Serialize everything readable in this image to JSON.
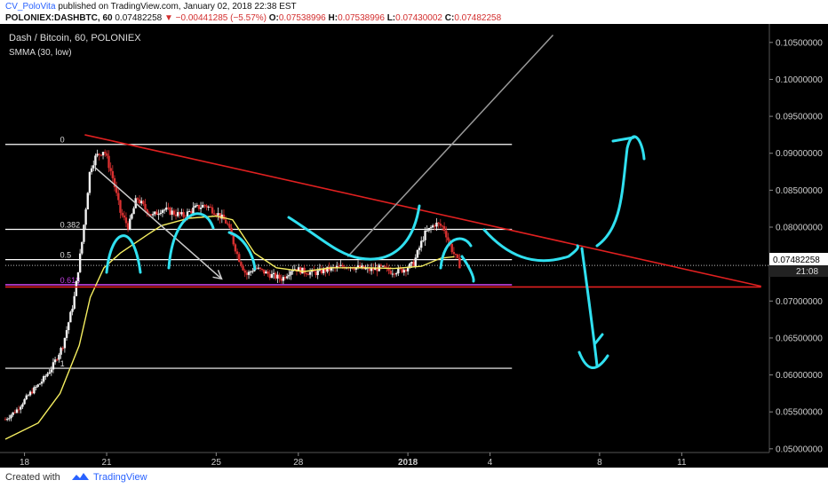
{
  "header": {
    "author": "CV_PoloVita",
    "published_text": "published on TradingView.com, January 02, 2018 22:38 EST",
    "symbol_line": "POLONIEX:DASHBTC, 60",
    "price": "0.07482258",
    "change": "−0.00441285 (−5.57%)",
    "ohlc": {
      "o_label": "O:",
      "o": "0.07538996",
      "h_label": "H:",
      "h": "0.07538996",
      "l_label": "L:",
      "l": "0.07430002",
      "c_label": "C:",
      "c": "0.07482258"
    }
  },
  "chart_title": "Dash / Bitcoin, 60, POLONIEX",
  "indicator_label": "SMMA (30, low)",
  "price_badge": "0.07482258",
  "time_badge": "21:08",
  "footer": {
    "created_with": "Created with",
    "brand": "TradingView"
  },
  "colors": {
    "trendline": "#e02020",
    "drawing": "#30e0f0",
    "smma": "#f5ee60",
    "fib": "#ffffff",
    "fib_base": "#c040e0"
  },
  "chart_data": {
    "type": "candlestick",
    "title": "Dash / Bitcoin, 60, POLONIEX",
    "ylim": [
      0.0495,
      0.1075
    ],
    "y_ticks": [
      "0.10500000",
      "0.10000000",
      "0.09500000",
      "0.09000000",
      "0.08500000",
      "0.08000000",
      "0.07500000",
      "0.07000000",
      "0.06500000",
      "0.06000000",
      "0.05500000",
      "0.05000000"
    ],
    "y_tick_values": [
      0.105,
      0.1,
      0.095,
      0.09,
      0.085,
      0.08,
      0.075,
      0.07,
      0.065,
      0.06,
      0.055,
      0.05
    ],
    "x_ticks": [
      {
        "label": "18",
        "day": 0
      },
      {
        "label": "21",
        "day": 3
      },
      {
        "label": "25",
        "day": 7
      },
      {
        "label": "28",
        "day": 10
      },
      {
        "label": "2018",
        "day": 14
      },
      {
        "label": "4",
        "day": 17
      },
      {
        "label": "8",
        "day": 21
      },
      {
        "label": "11",
        "day": 24
      }
    ],
    "xlim_days": [
      -0.7,
      27.2
    ],
    "fib_levels": [
      {
        "label": "0",
        "value": 0.0912
      },
      {
        "label": "0.382",
        "value": 0.0797
      },
      {
        "label": "0.5",
        "value": 0.0756
      },
      {
        "label": "0.618",
        "value": 0.0722
      },
      {
        "label": "1",
        "value": 0.0609
      }
    ],
    "fib_x_days": [
      -0.7,
      17.8
    ],
    "last_price": 0.07482258,
    "support_line": {
      "x_days": [
        -0.7,
        26.9
      ],
      "y": [
        0.0719,
        0.0719
      ]
    },
    "descending_trendline": {
      "x_days": [
        2.2,
        26.9
      ],
      "y": [
        0.0925,
        0.072
      ]
    },
    "smma_line": {
      "days": [
        -0.7,
        0.5,
        1.3,
        2.0,
        2.4,
        2.9,
        3.5,
        4.5,
        5.0,
        6.0,
        7.0,
        7.6,
        8.4,
        9.2,
        10.2,
        11.2,
        12.5,
        13.5,
        14.5,
        15.2,
        15.7
      ],
      "values": [
        0.0513,
        0.0535,
        0.0575,
        0.064,
        0.0705,
        0.0745,
        0.0765,
        0.079,
        0.0802,
        0.0812,
        0.0815,
        0.081,
        0.0765,
        0.0745,
        0.074,
        0.0745,
        0.0745,
        0.0744,
        0.0747,
        0.0758,
        0.076
      ]
    },
    "price_series": {
      "days": [
        -0.7,
        -0.3,
        0.2,
        0.6,
        1.0,
        1.4,
        1.8,
        2.1,
        2.4,
        2.6,
        2.9,
        3.2,
        3.5,
        3.8,
        4.1,
        4.4,
        4.7,
        5.0,
        5.4,
        5.8,
        6.2,
        6.6,
        7.0,
        7.4,
        7.8,
        8.1,
        8.4,
        8.7,
        9.0,
        9.4,
        9.8,
        10.2,
        10.6,
        11.0,
        11.4,
        11.8,
        12.2,
        12.6,
        13.0,
        13.4,
        13.8,
        14.2,
        14.6,
        15.0,
        15.3,
        15.6,
        15.9
      ],
      "values": [
        0.054,
        0.0552,
        0.0575,
        0.059,
        0.061,
        0.064,
        0.07,
        0.078,
        0.088,
        0.0895,
        0.0905,
        0.087,
        0.082,
        0.08,
        0.084,
        0.0825,
        0.0815,
        0.0825,
        0.082,
        0.0815,
        0.0825,
        0.083,
        0.082,
        0.0805,
        0.076,
        0.0735,
        0.0745,
        0.074,
        0.0735,
        0.073,
        0.0745,
        0.074,
        0.0738,
        0.0742,
        0.0745,
        0.0748,
        0.0745,
        0.0742,
        0.0745,
        0.074,
        0.0742,
        0.075,
        0.079,
        0.0805,
        0.08,
        0.077,
        0.0748
      ]
    },
    "extra_lines": [
      {
        "name": "white-arrow",
        "color": "#cccccc",
        "x_days": [
          2.6,
          7.2
        ],
        "y": [
          0.088,
          0.073
        ]
      },
      {
        "name": "gray-rising",
        "color": "#999999",
        "x_days": [
          11.8,
          19.3
        ],
        "y": [
          0.076,
          0.106
        ]
      }
    ]
  }
}
